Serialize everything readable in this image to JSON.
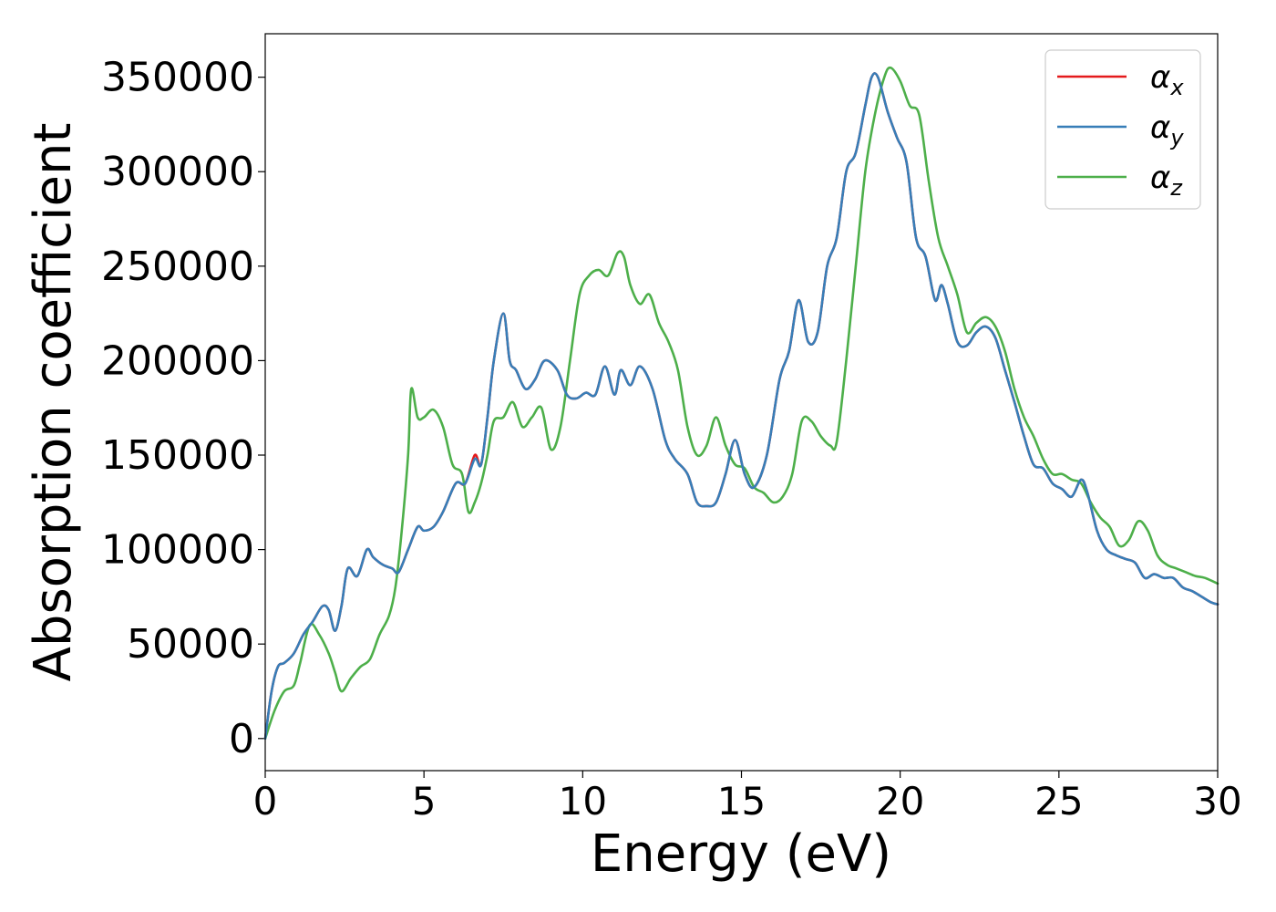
{
  "chart_data": {
    "type": "line",
    "title": "",
    "xlabel": "Energy (eV)",
    "ylabel": "Absorption coefficient",
    "xlim": [
      0,
      30
    ],
    "ylim": [
      -17000,
      373000
    ],
    "xticks": [
      0,
      5,
      10,
      15,
      20,
      25,
      30
    ],
    "xtick_labels": [
      "0",
      "5",
      "10",
      "15",
      "20",
      "25",
      "30"
    ],
    "yticks": [
      0,
      50000,
      100000,
      150000,
      200000,
      250000,
      300000,
      350000
    ],
    "ytick_labels": [
      "0",
      "50000",
      "100000",
      "150000",
      "200000",
      "250000",
      "300000",
      "350000"
    ],
    "grid": false,
    "legend_position": "top-right",
    "series": [
      {
        "name": "αx",
        "label_base": "α",
        "label_sub": "x",
        "color": "#e41a1c",
        "x": [
          0,
          0.2,
          0.4,
          0.6,
          0.9,
          1.2,
          1.5,
          1.8,
          2.0,
          2.2,
          2.4,
          2.6,
          2.9,
          3.2,
          3.4,
          3.7,
          4.0,
          4.2,
          4.5,
          4.8,
          5.0,
          5.3,
          5.6,
          6.0,
          6.3,
          6.6,
          6.8,
          7.0,
          7.2,
          7.5,
          7.7,
          7.9,
          8.2,
          8.5,
          8.8,
          9.2,
          9.5,
          9.8,
          10.1,
          10.4,
          10.7,
          11.0,
          11.2,
          11.5,
          11.8,
          12.2,
          12.6,
          12.9,
          13.3,
          13.6,
          13.9,
          14.2,
          14.5,
          14.8,
          15.1,
          15.4,
          15.8,
          16.2,
          16.5,
          16.8,
          17.1,
          17.4,
          17.7,
          18.0,
          18.3,
          18.6,
          18.9,
          19.1,
          19.3,
          19.6,
          19.9,
          20.2,
          20.5,
          20.8,
          21.1,
          21.3,
          21.5,
          21.8,
          22.1,
          22.4,
          22.7,
          23.0,
          23.3,
          23.6,
          23.9,
          24.2,
          24.5,
          24.8,
          25.1,
          25.4,
          25.7,
          25.9,
          26.2,
          26.5,
          26.8,
          27.1,
          27.4,
          27.7,
          28.0,
          28.3,
          28.6,
          28.9,
          29.2,
          29.5,
          29.8,
          30
        ],
        "y": [
          0,
          25000,
          38000,
          40000,
          45000,
          55000,
          62000,
          70000,
          68000,
          57000,
          70000,
          90000,
          86000,
          100000,
          96000,
          92000,
          90000,
          88000,
          100000,
          112000,
          110000,
          112000,
          120000,
          135000,
          135000,
          150000,
          145000,
          170000,
          200000,
          225000,
          200000,
          195000,
          185000,
          190000,
          200000,
          195000,
          182000,
          180000,
          183000,
          182000,
          197000,
          182000,
          195000,
          187000,
          197000,
          185000,
          158000,
          148000,
          140000,
          125000,
          123000,
          125000,
          140000,
          158000,
          140000,
          133000,
          150000,
          190000,
          205000,
          232000,
          210000,
          215000,
          250000,
          265000,
          300000,
          310000,
          335000,
          350000,
          350000,
          332000,
          318000,
          305000,
          265000,
          255000,
          232000,
          240000,
          230000,
          210000,
          208000,
          215000,
          218000,
          212000,
          195000,
          178000,
          160000,
          145000,
          143000,
          135000,
          132000,
          128000,
          137000,
          130000,
          110000,
          100000,
          97000,
          95000,
          93000,
          85000,
          87000,
          85000,
          85000,
          80000,
          78000,
          75000,
          72000,
          71000
        ]
      },
      {
        "name": "αy",
        "label_base": "α",
        "label_sub": "y",
        "color": "#377eb8",
        "x": [
          0,
          0.2,
          0.4,
          0.6,
          0.9,
          1.2,
          1.5,
          1.8,
          2.0,
          2.2,
          2.4,
          2.6,
          2.9,
          3.2,
          3.4,
          3.7,
          4.0,
          4.2,
          4.5,
          4.8,
          5.0,
          5.3,
          5.6,
          6.0,
          6.3,
          6.6,
          6.8,
          7.0,
          7.2,
          7.5,
          7.7,
          7.9,
          8.2,
          8.5,
          8.8,
          9.2,
          9.5,
          9.8,
          10.1,
          10.4,
          10.7,
          11.0,
          11.2,
          11.5,
          11.8,
          12.2,
          12.6,
          12.9,
          13.3,
          13.6,
          13.9,
          14.2,
          14.5,
          14.8,
          15.1,
          15.4,
          15.8,
          16.2,
          16.5,
          16.8,
          17.1,
          17.4,
          17.7,
          18.0,
          18.3,
          18.6,
          18.9,
          19.1,
          19.3,
          19.6,
          19.9,
          20.2,
          20.5,
          20.8,
          21.1,
          21.3,
          21.5,
          21.8,
          22.1,
          22.4,
          22.7,
          23.0,
          23.3,
          23.6,
          23.9,
          24.2,
          24.5,
          24.8,
          25.1,
          25.4,
          25.7,
          25.9,
          26.2,
          26.5,
          26.8,
          27.1,
          27.4,
          27.7,
          28.0,
          28.3,
          28.6,
          28.9,
          29.2,
          29.5,
          29.8,
          30
        ],
        "y": [
          0,
          25000,
          38000,
          40000,
          45000,
          55000,
          62000,
          70000,
          68000,
          57000,
          70000,
          90000,
          86000,
          100000,
          96000,
          92000,
          90000,
          88000,
          100000,
          112000,
          110000,
          112000,
          120000,
          135000,
          135000,
          148000,
          145000,
          170000,
          200000,
          225000,
          200000,
          195000,
          185000,
          190000,
          200000,
          195000,
          182000,
          180000,
          183000,
          182000,
          197000,
          182000,
          195000,
          187000,
          197000,
          185000,
          158000,
          148000,
          140000,
          125000,
          123000,
          125000,
          140000,
          158000,
          140000,
          133000,
          150000,
          190000,
          205000,
          232000,
          210000,
          215000,
          250000,
          265000,
          300000,
          310000,
          335000,
          350000,
          350000,
          332000,
          318000,
          305000,
          265000,
          255000,
          232000,
          240000,
          230000,
          210000,
          208000,
          215000,
          218000,
          212000,
          195000,
          178000,
          160000,
          145000,
          143000,
          135000,
          132000,
          128000,
          137000,
          130000,
          110000,
          100000,
          97000,
          95000,
          93000,
          85000,
          87000,
          85000,
          85000,
          80000,
          78000,
          75000,
          72000,
          71000
        ]
      },
      {
        "name": "αz",
        "label_base": "α",
        "label_sub": "z",
        "color": "#4daf4a",
        "x": [
          0,
          0.3,
          0.6,
          0.9,
          1.1,
          1.4,
          1.7,
          2.0,
          2.2,
          2.4,
          2.7,
          3.0,
          3.3,
          3.6,
          3.9,
          4.1,
          4.3,
          4.5,
          4.6,
          4.8,
          5.0,
          5.3,
          5.6,
          5.9,
          6.2,
          6.4,
          6.6,
          6.8,
          7.0,
          7.2,
          7.5,
          7.8,
          8.1,
          8.4,
          8.7,
          9.0,
          9.3,
          9.6,
          9.9,
          10.2,
          10.5,
          10.8,
          11.1,
          11.3,
          11.5,
          11.8,
          12.1,
          12.4,
          12.7,
          13.0,
          13.3,
          13.6,
          13.9,
          14.2,
          14.5,
          14.8,
          15.1,
          15.4,
          15.7,
          16.0,
          16.3,
          16.6,
          16.9,
          17.2,
          17.5,
          17.8,
          18.0,
          18.3,
          18.6,
          18.9,
          19.2,
          19.5,
          19.7,
          20.0,
          20.3,
          20.6,
          20.9,
          21.2,
          21.5,
          21.8,
          22.1,
          22.4,
          22.7,
          23.0,
          23.3,
          23.6,
          23.9,
          24.2,
          24.5,
          24.8,
          25.1,
          25.4,
          25.7,
          26.0,
          26.3,
          26.6,
          26.9,
          27.2,
          27.5,
          27.8,
          28.1,
          28.4,
          28.7,
          29.0,
          29.3,
          29.6,
          30
        ],
        "y": [
          0,
          15000,
          25000,
          28000,
          40000,
          60000,
          55000,
          45000,
          35000,
          25000,
          32000,
          38000,
          42000,
          55000,
          65000,
          80000,
          110000,
          150000,
          185000,
          170000,
          170000,
          174000,
          165000,
          145000,
          140000,
          120000,
          125000,
          135000,
          150000,
          168000,
          170000,
          178000,
          165000,
          170000,
          175000,
          153000,
          165000,
          200000,
          235000,
          245000,
          248000,
          245000,
          257000,
          255000,
          240000,
          230000,
          235000,
          220000,
          210000,
          195000,
          165000,
          150000,
          155000,
          170000,
          155000,
          145000,
          143000,
          133000,
          130000,
          125000,
          128000,
          140000,
          168000,
          168000,
          160000,
          155000,
          157000,
          200000,
          250000,
          300000,
          330000,
          350000,
          355000,
          348000,
          335000,
          330000,
          295000,
          265000,
          250000,
          235000,
          215000,
          220000,
          223000,
          218000,
          205000,
          185000,
          170000,
          160000,
          148000,
          140000,
          140000,
          137000,
          135000,
          125000,
          117000,
          112000,
          102000,
          105000,
          115000,
          110000,
          97000,
          92000,
          90000,
          88000,
          86000,
          85000,
          82000
        ]
      }
    ]
  }
}
